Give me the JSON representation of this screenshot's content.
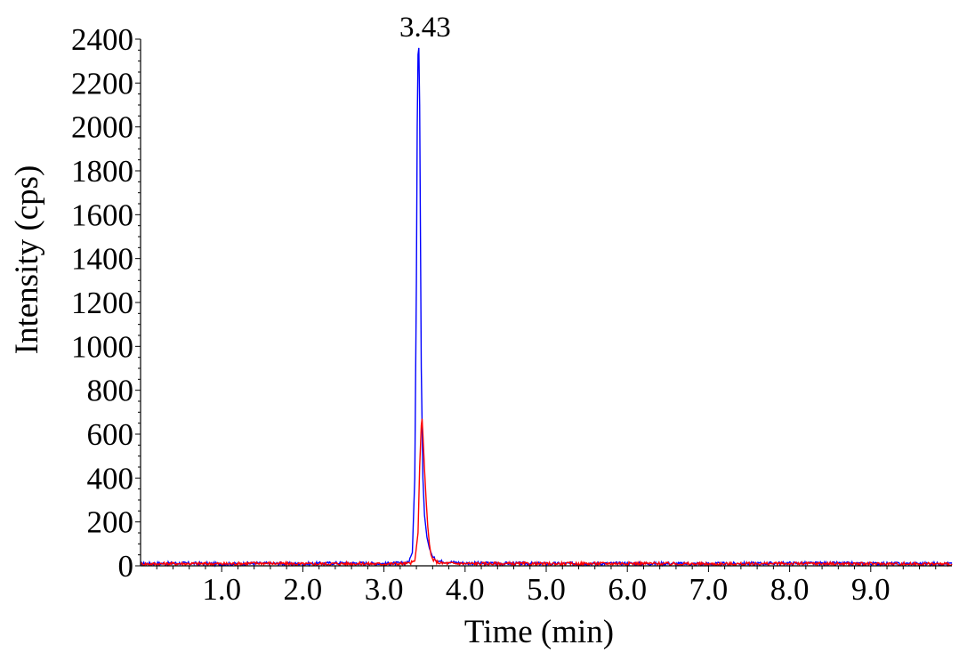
{
  "chart_data": {
    "type": "line",
    "xlabel": "Time (min)",
    "ylabel": "Intensity (cps)",
    "xlim": [
      0,
      10
    ],
    "ylim": [
      0,
      2400
    ],
    "x_ticks": [
      "1.0",
      "2.0",
      "3.0",
      "4.0",
      "5.0",
      "6.0",
      "7.0",
      "8.0",
      "9.0"
    ],
    "y_ticks": [
      "0",
      "200",
      "400",
      "600",
      "800",
      "1000",
      "1200",
      "1400",
      "1600",
      "1800",
      "2000",
      "2200",
      "2400"
    ],
    "annotations": [
      {
        "text": "3.43",
        "x": 3.43,
        "y": 2400
      }
    ],
    "grid": false,
    "series": [
      {
        "color": "#0000ff",
        "x": [
          0.0,
          0.5,
          1.0,
          1.5,
          2.0,
          2.5,
          3.0,
          3.2,
          3.3,
          3.35,
          3.38,
          3.4,
          3.41,
          3.42,
          3.43,
          3.44,
          3.45,
          3.46,
          3.48,
          3.5,
          3.53,
          3.56,
          3.6,
          3.65,
          3.7,
          4.0,
          5.0,
          6.0,
          7.0,
          8.0,
          9.0,
          10.0
        ],
        "y": [
          10,
          12,
          8,
          11,
          9,
          13,
          10,
          12,
          15,
          60,
          400,
          1300,
          2000,
          2330,
          2360,
          2100,
          1500,
          900,
          400,
          230,
          130,
          80,
          40,
          25,
          20,
          12,
          10,
          11,
          9,
          12,
          10,
          10
        ]
      },
      {
        "color": "#ff0000",
        "x": [
          0.0,
          0.5,
          1.0,
          1.5,
          2.0,
          2.5,
          3.0,
          3.3,
          3.38,
          3.42,
          3.44,
          3.46,
          3.47,
          3.48,
          3.49,
          3.5,
          3.52,
          3.54,
          3.56,
          3.58,
          3.6,
          3.65,
          3.7,
          4.0,
          5.0,
          6.0,
          7.0,
          8.0,
          9.0,
          10.0
        ],
        "y": [
          8,
          10,
          9,
          12,
          8,
          10,
          9,
          10,
          20,
          150,
          450,
          640,
          670,
          600,
          520,
          440,
          300,
          180,
          100,
          50,
          30,
          18,
          12,
          10,
          9,
          11,
          8,
          10,
          9,
          8
        ]
      }
    ]
  }
}
